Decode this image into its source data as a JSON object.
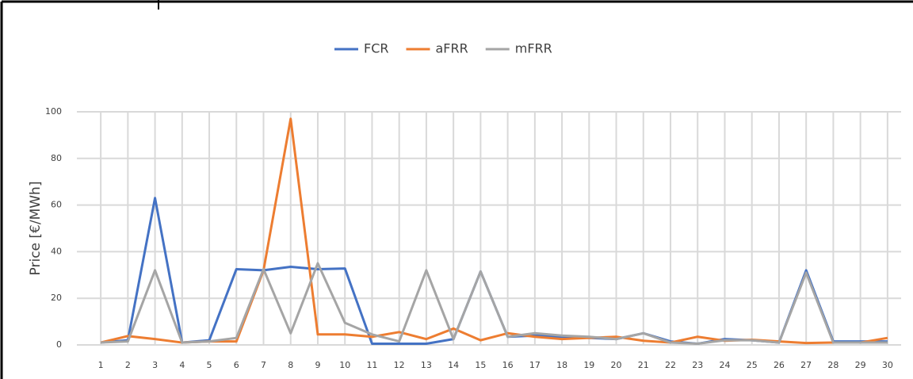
{
  "chart_data": {
    "type": "line",
    "y_label": "Price [€/MWh]",
    "categories": [
      "1",
      "2",
      "3",
      "4",
      "5",
      "6",
      "7",
      "8",
      "9",
      "10",
      "11",
      "12",
      "13",
      "14",
      "15",
      "16",
      "17",
      "18",
      "19",
      "20",
      "21",
      "22",
      "23",
      "24",
      "25",
      "26",
      "27",
      "28",
      "29",
      "30"
    ],
    "series": [
      {
        "name": "FCR",
        "color": "#4472c4",
        "values": [
          1,
          2,
          63,
          1,
          2,
          32.5,
          32,
          33.5,
          32.5,
          32.8,
          0.5,
          0.5,
          0.5,
          2.5,
          31.5,
          3.5,
          4,
          3.5,
          3,
          2.5,
          5,
          1.5,
          0.5,
          2.5,
          2,
          1,
          32,
          1.5,
          1.5,
          1.5
        ]
      },
      {
        "name": "aFRR",
        "color": "#ed7d31",
        "values": [
          1,
          3.8,
          2.5,
          1,
          1.5,
          1.5,
          32,
          97,
          4.5,
          4.5,
          3.5,
          5.5,
          2.5,
          7,
          2,
          5,
          3.5,
          2.5,
          3,
          3.5,
          1.8,
          1,
          3.5,
          1.8,
          2.2,
          1.5,
          0.8,
          1,
          1,
          3
        ]
      },
      {
        "name": "mFRR",
        "color": "#a5a5a5",
        "values": [
          1,
          1.5,
          32,
          1,
          1.5,
          3,
          32.5,
          5,
          35,
          9.5,
          4.5,
          1.5,
          32,
          2.5,
          31.5,
          3.5,
          5,
          4,
          3.5,
          2.5,
          5,
          1,
          0.5,
          2,
          2,
          1,
          31,
          1,
          1,
          1
        ]
      }
    ],
    "ylim": [
      0,
      100
    ],
    "yticks": [
      0,
      20,
      40,
      60,
      80,
      100
    ],
    "grid": true
  }
}
